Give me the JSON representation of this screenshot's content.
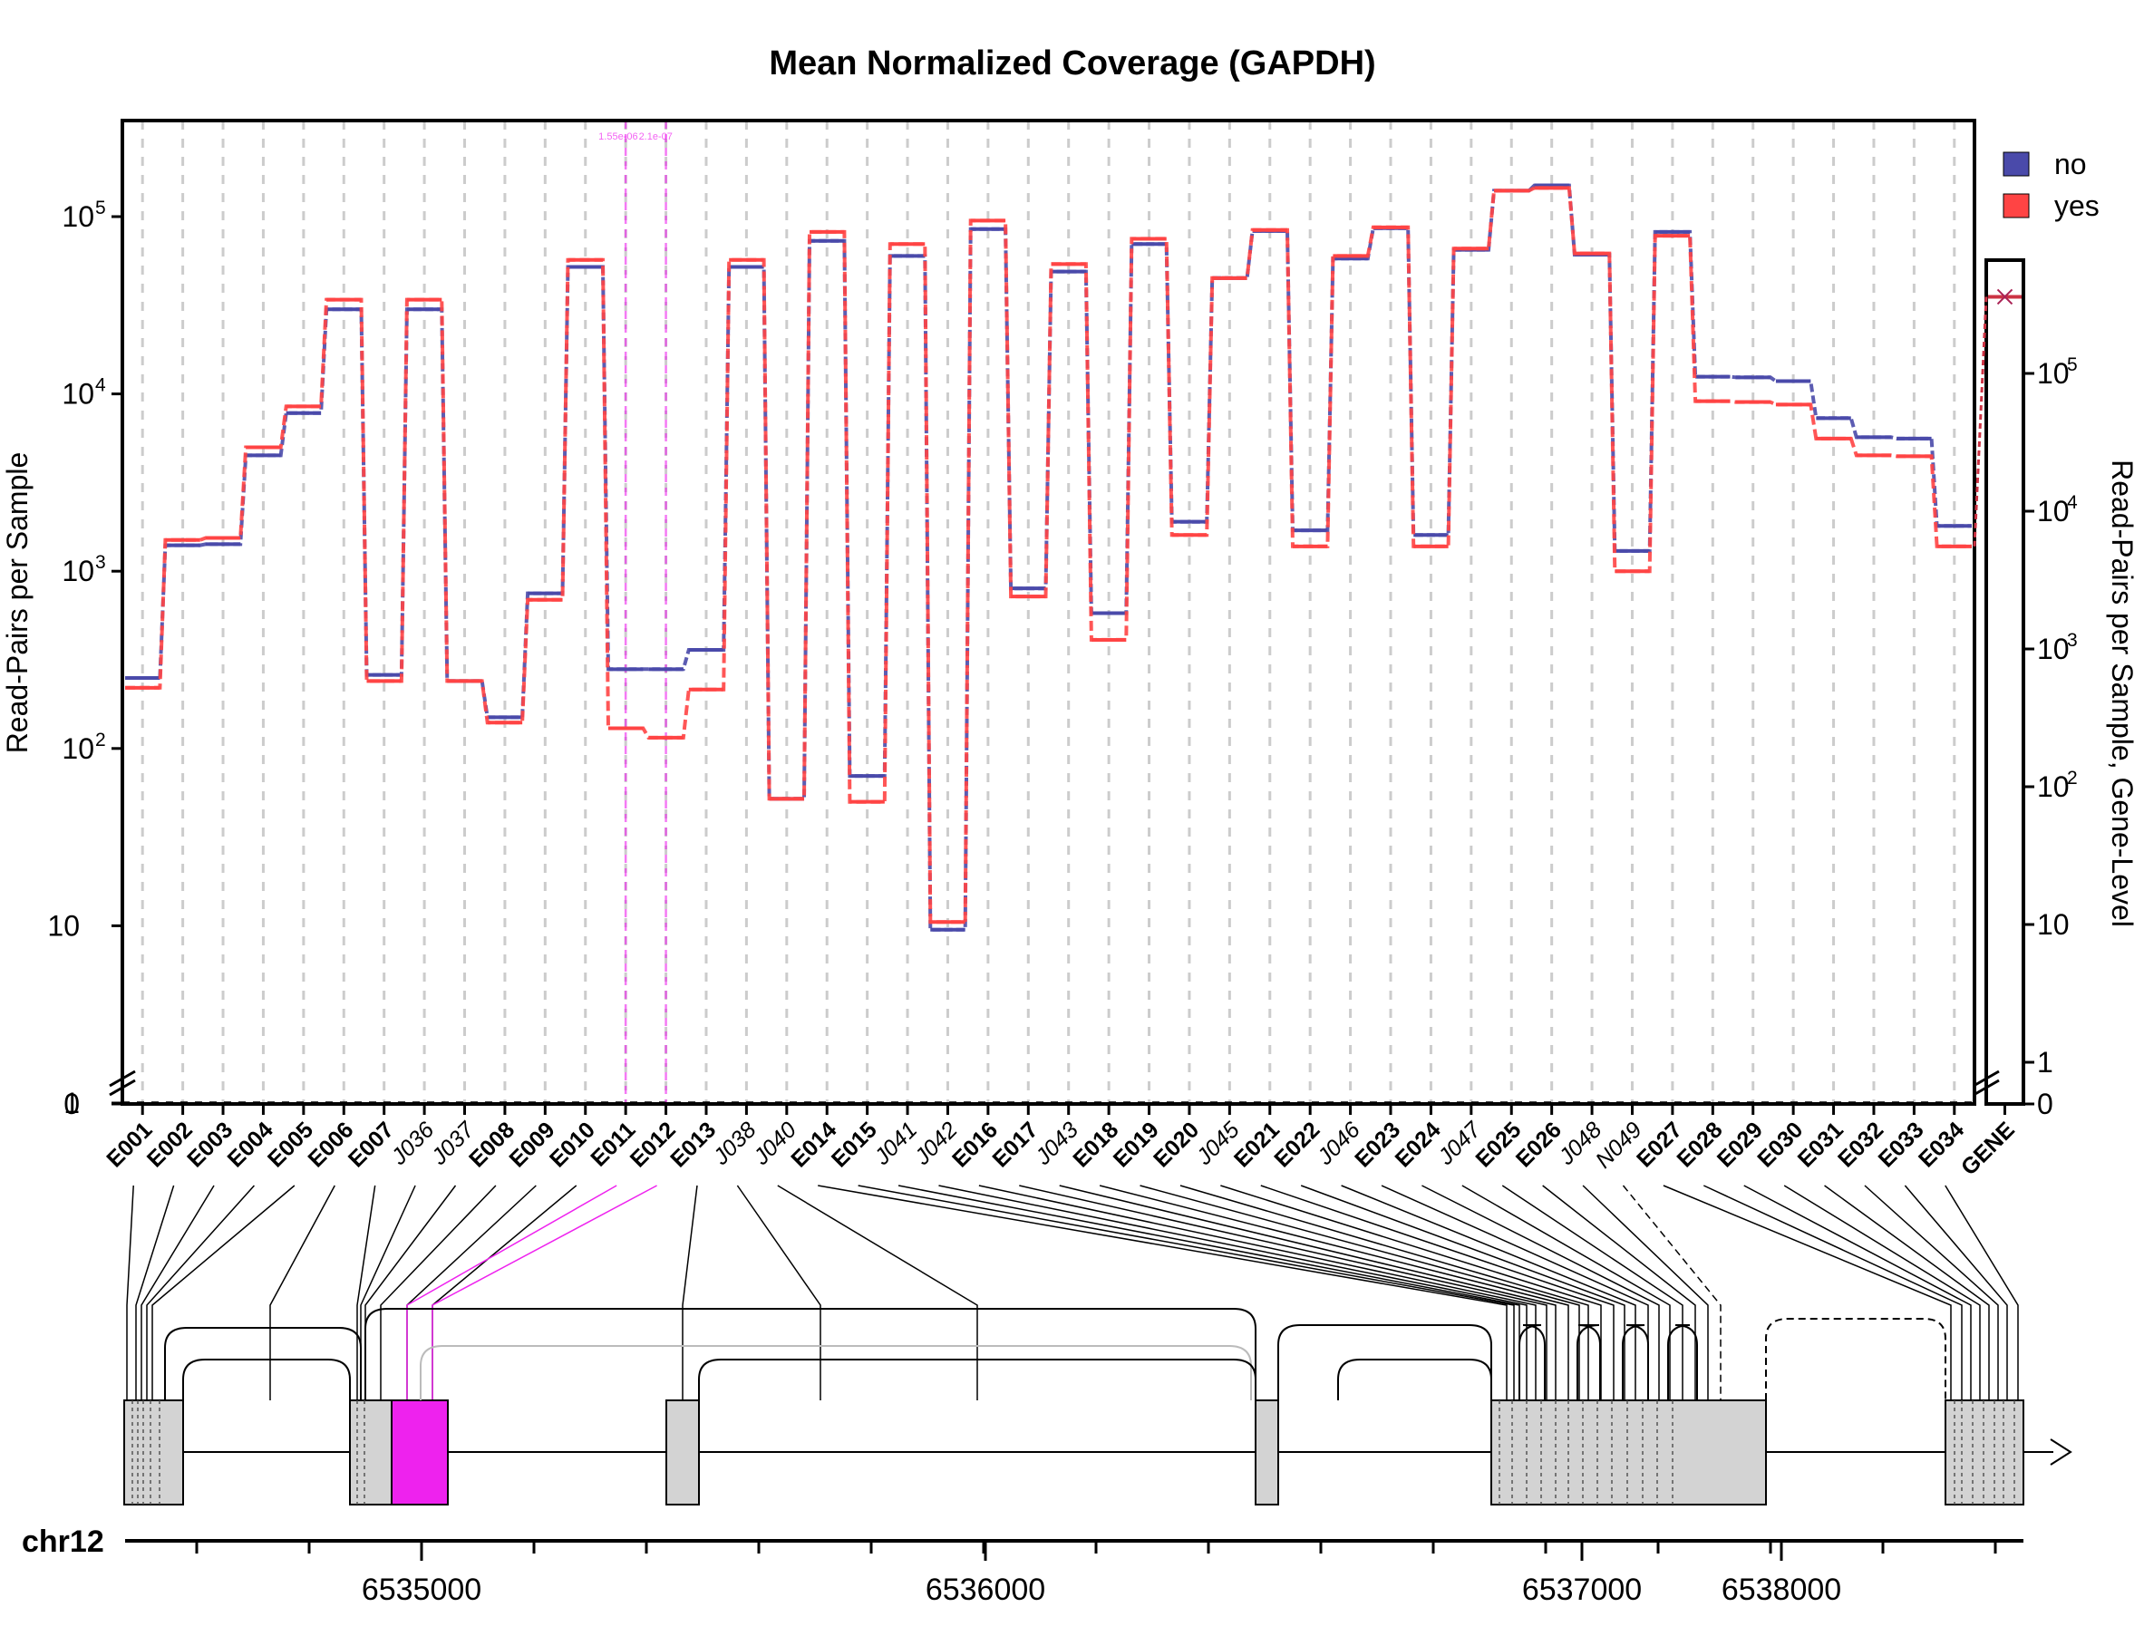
{
  "chart_data": {
    "type": "line",
    "title": "Mean Normalized Coverage (GAPDH)",
    "ylabel": "Read-Pairs per Sample",
    "ylabel_right": "Read-Pairs per Sample, Gene-Level",
    "y_scale": "log",
    "y_ticks": [
      {
        "value": 100000,
        "base": "10",
        "exp": "5"
      },
      {
        "value": 10000,
        "base": "10",
        "exp": "4"
      },
      {
        "value": 1000,
        "base": "10",
        "exp": "3"
      },
      {
        "value": 100,
        "base": "10",
        "exp": "2"
      },
      {
        "value": 10,
        "base": "10",
        "exp": ""
      },
      {
        "value": 1,
        "base": "1",
        "exp": ""
      },
      {
        "value": 0,
        "base": "0",
        "exp": ""
      }
    ],
    "y_ticks_right": [
      {
        "value": 100000,
        "base": "10",
        "exp": "5"
      },
      {
        "value": 10000,
        "base": "10",
        "exp": "4"
      },
      {
        "value": 1000,
        "base": "10",
        "exp": "3"
      },
      {
        "value": 100,
        "base": "10",
        "exp": "2"
      },
      {
        "value": 10,
        "base": "10",
        "exp": ""
      },
      {
        "value": 1,
        "base": "1",
        "exp": ""
      },
      {
        "value": 0,
        "base": "0",
        "exp": ""
      }
    ],
    "categories": [
      "E001",
      "E002",
      "E003",
      "E004",
      "E005",
      "E006",
      "E007",
      "J036",
      "J037",
      "E008",
      "E009",
      "E010",
      "E011",
      "E012",
      "E013",
      "J038",
      "J040",
      "E014",
      "E015",
      "J041",
      "J042",
      "E016",
      "E017",
      "J043",
      "E018",
      "E019",
      "E020",
      "J045",
      "E021",
      "E022",
      "J046",
      "E023",
      "E024",
      "J047",
      "E025",
      "E026",
      "J048",
      "N049",
      "E027",
      "E028",
      "E029",
      "E030",
      "E031",
      "E032",
      "E033",
      "E034"
    ],
    "gene_category": "GENE",
    "legend": [
      {
        "name": "no",
        "color": "#4a4aaa"
      },
      {
        "name": "yes",
        "color": "#ff4444"
      }
    ],
    "legend_position": "top-right",
    "grid": true,
    "series": [
      {
        "name": "no",
        "color": "#4a4aaa",
        "values": [
          250,
          1400,
          1420,
          4500,
          7800,
          30000,
          260,
          30000,
          240,
          150,
          750,
          52000,
          280,
          280,
          360,
          52000,
          52,
          73000,
          70,
          60000,
          9.5,
          85000,
          800,
          49000,
          580,
          70000,
          1900,
          45000,
          83000,
          1700,
          58000,
          86000,
          1600,
          65000,
          140000,
          150000,
          61000,
          1300,
          82000,
          12500,
          12400,
          11800,
          7300,
          5700,
          5600,
          1800
        ],
        "gene_value": 360000
      },
      {
        "name": "yes",
        "color": "#ff4444",
        "values": [
          220,
          1500,
          1540,
          5000,
          8500,
          34000,
          240,
          34000,
          240,
          140,
          690,
          57000,
          130,
          115,
          215,
          57000,
          52,
          82000,
          50,
          70000,
          10.5,
          95000,
          720,
          54000,
          410,
          75000,
          1600,
          45000,
          84000,
          1380,
          60000,
          87000,
          1380,
          66000,
          140000,
          145000,
          62000,
          1000,
          78000,
          9100,
          9000,
          8700,
          5600,
          4500,
          4450,
          1380
        ],
        "gene_value": 360000
      }
    ],
    "significant_markers": [
      {
        "feature": "E011",
        "label": "1.55e-06"
      },
      {
        "feature": "E012",
        "label": "2.1e-07"
      }
    ],
    "dashed_baseline": 1,
    "genome_axis": {
      "chrom": "chr12",
      "major_ticks": [
        "6535000",
        "6536000",
        "6537000",
        "6538000"
      ]
    },
    "highlight_color": "#ee22ee"
  }
}
